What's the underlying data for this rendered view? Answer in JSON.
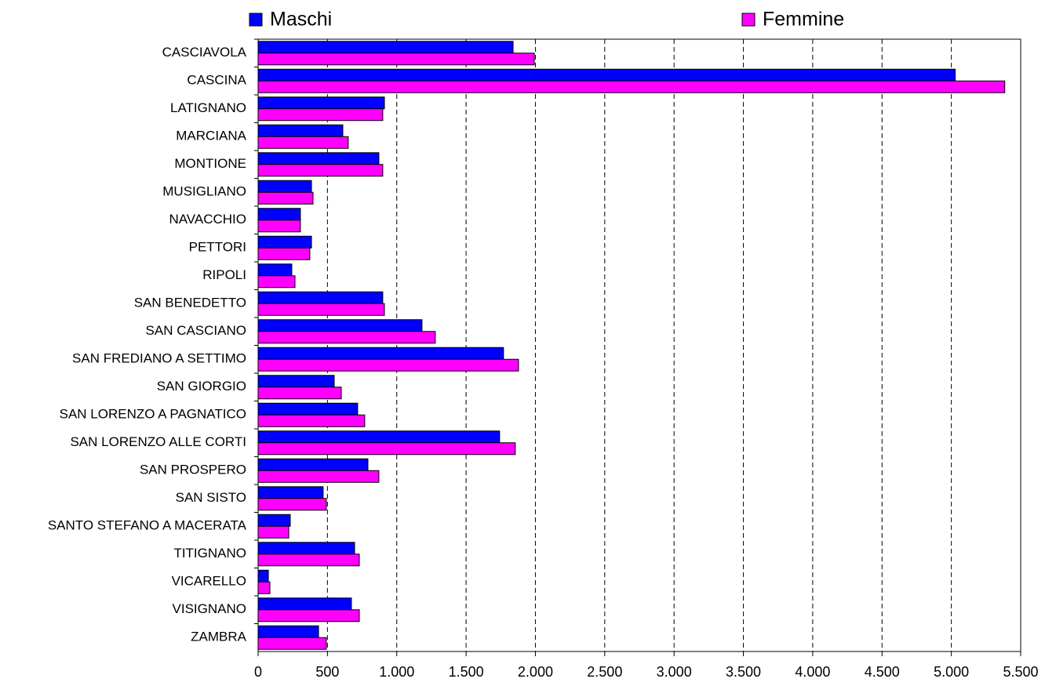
{
  "chart_data": {
    "type": "bar",
    "orientation": "horizontal",
    "categories": [
      "CASCIAVOLA",
      "CASCINA",
      "LATIGNANO",
      "MARCIANA",
      "MONTIONE",
      "MUSIGLIANO",
      "NAVACCHIO",
      "PETTORI",
      "RIPOLI",
      "SAN BENEDETTO",
      "SAN CASCIANO",
      "SAN FREDIANO A SETTIMO",
      "SAN GIORGIO",
      "SAN LORENZO A PAGNATICO",
      "SAN LORENZO ALLE CORTI",
      "SAN PROSPERO",
      "SAN SISTO",
      "SANTO STEFANO A MACERATA",
      "TITIGNANO",
      "VICARELLO",
      "VISIGNANO",
      "ZAMBRA"
    ],
    "series": [
      {
        "name": "Maschi",
        "color": "#0000ff",
        "values": [
          1839,
          5028,
          911,
          611,
          871,
          385,
          305,
          385,
          243,
          899,
          1182,
          1770,
          549,
          718,
          1742,
          792,
          469,
          232,
          696,
          74,
          673,
          436
        ]
      },
      {
        "name": "Femmine",
        "color": "#ff00ff",
        "values": [
          1992,
          5385,
          899,
          650,
          899,
          396,
          305,
          373,
          266,
          911,
          1278,
          1878,
          600,
          769,
          1855,
          871,
          492,
          221,
          730,
          85,
          730,
          492
        ]
      }
    ],
    "xlim": [
      0,
      5500
    ],
    "xticks": [
      0,
      500,
      {
        "value": 1000,
        "label": "1.000"
      },
      {
        "value": 1500,
        "label": "1.500"
      },
      {
        "value": 2000,
        "label": "2.000"
      },
      {
        "value": 2500,
        "label": "2.500"
      },
      {
        "value": 3000,
        "label": "3.000"
      },
      {
        "value": 3500,
        "label": "3.500"
      },
      {
        "value": 4000,
        "label": "4.000"
      },
      {
        "value": 4500,
        "label": "4.500"
      },
      {
        "value": 5000,
        "label": "5.000"
      },
      {
        "value": 5500,
        "label": "5.500"
      }
    ],
    "grid": true,
    "legend": "top"
  }
}
